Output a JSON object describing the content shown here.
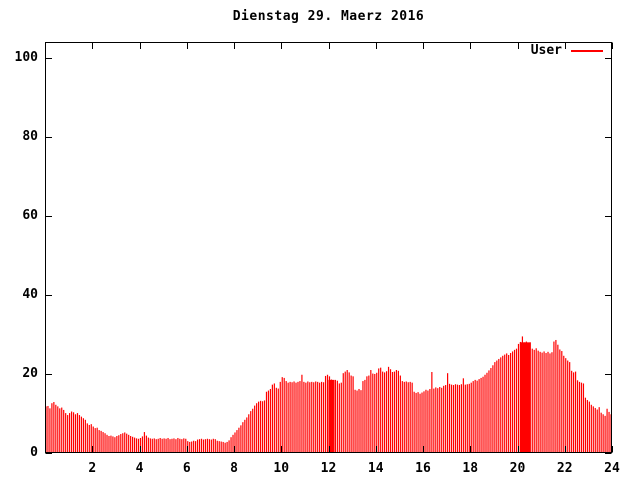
{
  "window": {
    "background": "#ffffff",
    "foreground": "#000000"
  },
  "chart_data": {
    "type": "bar",
    "style": "impulses",
    "title": "Dienstag 29. Maerz 2016",
    "xlabel": "",
    "ylabel": "",
    "xlim": [
      0,
      24
    ],
    "ylim": [
      0,
      104
    ],
    "x_ticks": [
      2,
      4,
      6,
      8,
      10,
      12,
      14,
      16,
      18,
      20,
      22,
      24
    ],
    "y_ticks": [
      0,
      20,
      40,
      60,
      80,
      100
    ],
    "grid": false,
    "legend_position": "top-right-inside",
    "axis_color": "#000000",
    "x_unit": "hour_of_day",
    "sample_interval_minutes": 5,
    "series": [
      {
        "name": "User",
        "color": "#ff0000",
        "values": [
          11.8,
          11.9,
          11.3,
          12.6,
          12.9,
          12.2,
          11.8,
          11.3,
          11.5,
          10.9,
          10.1,
          9.6,
          10.1,
          10.5,
          10.3,
          9.8,
          10.1,
          9.6,
          9.2,
          8.8,
          8.4,
          7.5,
          7.1,
          7.3,
          6.7,
          6.3,
          6.4,
          5.8,
          5.6,
          5.3,
          5.0,
          4.6,
          4.3,
          4.4,
          4.2,
          4.0,
          4.3,
          4.5,
          4.8,
          5.0,
          5.2,
          4.9,
          4.6,
          4.3,
          4.1,
          3.9,
          3.7,
          3.6,
          3.8,
          4.2,
          5.3,
          4.4,
          3.9,
          3.7,
          3.6,
          3.7,
          3.5,
          3.6,
          3.8,
          3.6,
          3.7,
          3.6,
          3.8,
          3.5,
          3.6,
          3.7,
          3.5,
          3.8,
          3.6,
          3.5,
          3.7,
          3.6,
          3.0,
          2.8,
          2.9,
          3.1,
          3.0,
          3.4,
          3.5,
          3.6,
          3.4,
          3.5,
          3.6,
          3.5,
          3.4,
          3.6,
          3.5,
          3.1,
          3.0,
          2.9,
          2.8,
          2.6,
          2.8,
          3.2,
          4.0,
          4.6,
          5.2,
          5.8,
          6.4,
          7.0,
          7.8,
          8.4,
          9.0,
          9.8,
          10.6,
          11.2,
          12.0,
          12.6,
          13.0,
          13.2,
          13.1,
          13.3,
          15.5,
          15.8,
          16.2,
          17.3,
          17.6,
          16.5,
          16.3,
          18.0,
          19.2,
          19.0,
          18.2,
          17.8,
          18.0,
          17.9,
          18.1,
          17.8,
          18.0,
          18.2,
          19.8,
          18.0,
          17.8,
          18.1,
          17.9,
          18.0,
          17.9,
          18.1,
          18.0,
          17.8,
          18.0,
          17.9,
          19.5,
          19.8,
          19.4,
          18.6,
          18.4,
          18.5,
          18.3,
          17.6,
          17.8,
          20.2,
          20.6,
          21.0,
          20.4,
          19.6,
          19.4,
          16.0,
          15.8,
          16.2,
          15.9,
          18.2,
          18.5,
          19.4,
          19.6,
          21.0,
          20.1,
          20.0,
          20.3,
          21.4,
          21.6,
          20.6,
          20.4,
          20.7,
          21.8,
          21.2,
          20.5,
          20.6,
          21.0,
          20.8,
          19.6,
          18.2,
          18.0,
          18.1,
          17.9,
          18.0,
          17.8,
          15.5,
          15.2,
          15.4,
          15.0,
          15.3,
          15.6,
          16.0,
          15.8,
          16.2,
          20.5,
          16.3,
          16.6,
          16.4,
          16.7,
          16.5,
          17.0,
          17.2,
          20.2,
          17.5,
          17.3,
          17.2,
          17.4,
          17.3,
          17.2,
          17.4,
          18.9,
          17.3,
          17.4,
          17.5,
          17.8,
          18.2,
          18.5,
          18.3,
          18.7,
          19.0,
          19.3,
          19.8,
          20.3,
          20.9,
          21.5,
          22.2,
          23.0,
          23.4,
          23.8,
          24.2,
          24.6,
          24.9,
          25.2,
          24.8,
          25.3,
          25.7,
          26.1,
          26.4,
          27.6,
          28.1,
          29.5,
          28.0,
          28.2,
          27.9,
          28.0,
          26.4,
          26.1,
          26.5,
          25.9,
          25.6,
          25.4,
          25.7,
          25.3,
          25.6,
          25.2,
          25.5,
          28.2,
          28.6,
          27.4,
          26.2,
          25.8,
          24.6,
          24.0,
          23.4,
          23.0,
          20.8,
          20.4,
          20.6,
          18.4,
          18.0,
          17.8,
          17.6,
          14.0,
          13.4,
          13.0,
          12.2,
          11.8,
          11.4,
          11.0,
          11.6,
          10.2,
          9.8,
          9.4,
          11.2,
          10.4,
          9.8
        ]
      }
    ],
    "solid_regions": [
      {
        "from_hour": 12.0,
        "to_hour": 12.25,
        "value": 18.5
      },
      {
        "from_hour": 20.1,
        "to_hour": 20.55,
        "value": 28.0
      }
    ]
  },
  "legend": {
    "label": "User"
  }
}
